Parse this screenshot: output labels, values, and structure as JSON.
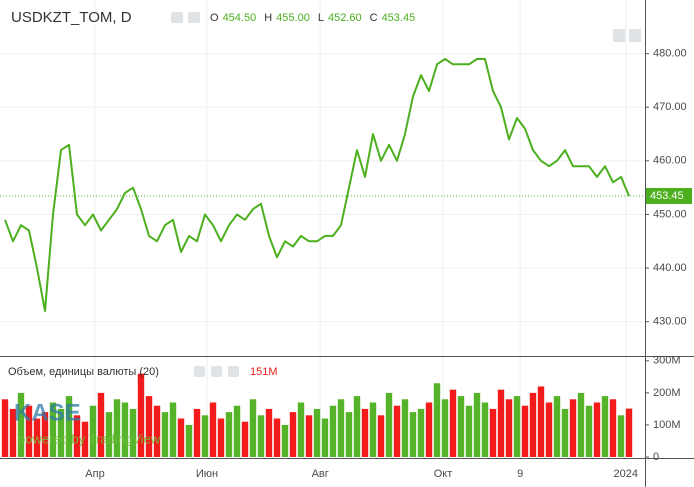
{
  "chart_data": [
    {
      "type": "line",
      "title": "USDKZT_TOM, D",
      "color": "#4caf1e",
      "legend_values": [
        {
          "name": "O",
          "value": 454.5,
          "label": "454.50"
        },
        {
          "name": "H",
          "value": 455.0,
          "label": "455.00"
        },
        {
          "name": "L",
          "value": 452.6,
          "label": "452.60"
        },
        {
          "name": "C",
          "value": 453.45,
          "label": "453.45"
        }
      ],
      "last_value": {
        "value": 453.45,
        "label": "453.45"
      },
      "x": [
        0,
        1,
        2,
        3,
        4,
        5,
        6,
        7,
        8,
        9,
        10,
        11,
        12,
        13,
        14,
        15,
        16,
        17,
        18,
        19,
        20,
        21,
        22,
        23,
        24,
        25,
        26,
        27,
        28,
        29,
        30,
        31,
        32,
        33,
        34,
        35,
        36,
        37,
        38,
        39,
        40,
        41,
        42,
        43,
        44,
        45,
        46,
        47,
        48,
        49,
        50,
        51,
        52,
        53,
        54,
        55,
        56,
        57,
        58,
        59,
        60,
        61,
        62,
        63,
        64,
        65,
        66,
        67,
        68,
        69,
        70,
        71,
        72,
        73,
        74,
        75,
        76,
        77,
        78
      ],
      "values": [
        449,
        445,
        448,
        447,
        440,
        432,
        450,
        462,
        463,
        450,
        448,
        450,
        447,
        449,
        451,
        454,
        455,
        451,
        446,
        445,
        448,
        449,
        443,
        446,
        445,
        450,
        448,
        445,
        448,
        450,
        449,
        451,
        452,
        446,
        442,
        445,
        444,
        446,
        445,
        445,
        446,
        446,
        448,
        455,
        462,
        457,
        465,
        460,
        463,
        460,
        465,
        472,
        476,
        473,
        478,
        479,
        478,
        478,
        478,
        479,
        479,
        473,
        470,
        464,
        468,
        466,
        462,
        460,
        459,
        460,
        462,
        459,
        459,
        459,
        457,
        459,
        456,
        457,
        453.45
      ],
      "xlim": [
        -0.625,
        80
      ],
      "xticks": [
        {
          "value": 11.25,
          "label": "Апр"
        },
        {
          "value": 25.25,
          "label": "Июн"
        },
        {
          "value": 39.4,
          "label": "Авг"
        },
        {
          "value": 54.75,
          "label": "Окт"
        },
        {
          "value": 64.4,
          "label": "9"
        },
        {
          "value": 77.6,
          "label": "2024"
        }
      ],
      "ylim": [
        423.6,
        490
      ],
      "yticks": [
        {
          "value": 430,
          "label": "430.00"
        },
        {
          "value": 440,
          "label": "440.00"
        },
        {
          "value": 450,
          "label": "450.00"
        },
        {
          "value": 460,
          "label": "460.00"
        },
        {
          "value": 470,
          "label": "470.00"
        },
        {
          "value": 480,
          "label": "480.00"
        }
      ],
      "grid": true
    },
    {
      "type": "bar",
      "title": "Объем, единицы валюты (20)",
      "last_value": {
        "value": 151,
        "label": "151M"
      },
      "up_color": "#55b32a",
      "down_color": "#f21a1a",
      "values": [
        180,
        150,
        200,
        160,
        120,
        140,
        170,
        150,
        190,
        130,
        110,
        160,
        200,
        140,
        180,
        170,
        150,
        260,
        190,
        160,
        140,
        170,
        120,
        100,
        150,
        130,
        170,
        120,
        140,
        160,
        110,
        180,
        130,
        150,
        120,
        100,
        140,
        170,
        130,
        150,
        120,
        160,
        180,
        140,
        190,
        150,
        170,
        130,
        200,
        160,
        180,
        140,
        150,
        170,
        230,
        180,
        210,
        190,
        160,
        200,
        170,
        150,
        210,
        180,
        190,
        160,
        200,
        220,
        170,
        190,
        150,
        180,
        200,
        160,
        170,
        190,
        180,
        130,
        151
      ],
      "ylim": [
        0,
        315
      ],
      "yticks": [
        0,
        {
          "value": 100,
          "label": "100M"
        },
        {
          "value": 200,
          "label": "200M"
        },
        {
          "value": 300,
          "label": "300M"
        }
      ]
    }
  ],
  "watermark": {
    "logo": "KASE",
    "text": "powered by TradingView"
  }
}
